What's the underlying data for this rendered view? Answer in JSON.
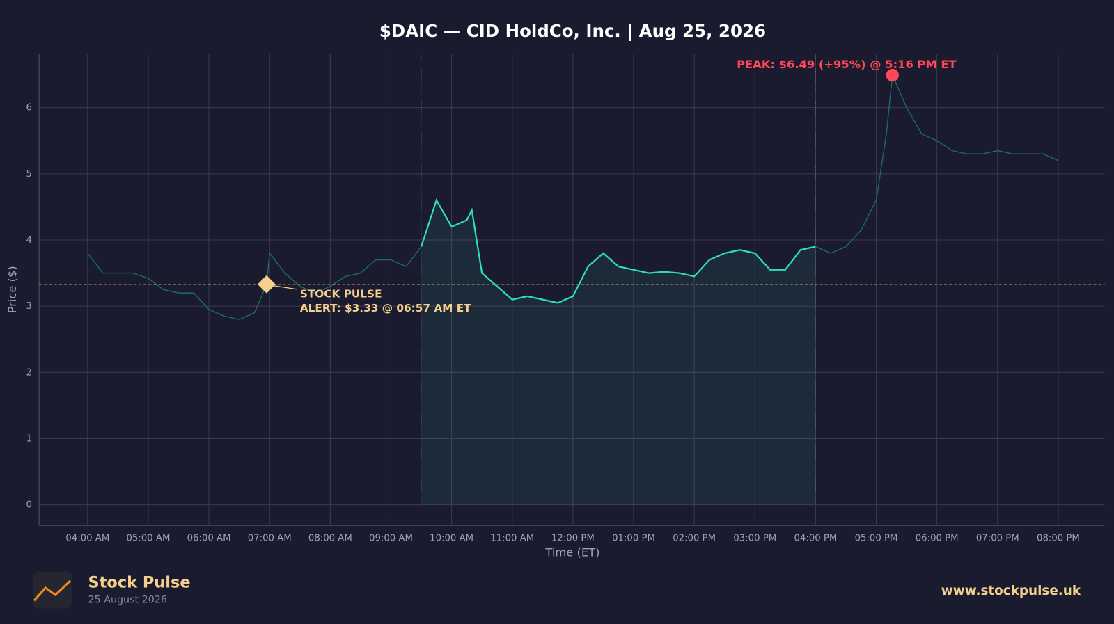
{
  "chart_data": {
    "type": "line",
    "title": "$DAIC — CID HoldCo, Inc.  |  Aug 25, 2026",
    "xlabel": "Time (ET)",
    "ylabel": "Price ($)",
    "x": [
      "04:00 AM",
      "04:15 AM",
      "04:30 AM",
      "04:45 AM",
      "05:00 AM",
      "05:15 AM",
      "05:30 AM",
      "05:45 AM",
      "06:00 AM",
      "06:15 AM",
      "06:30 AM",
      "06:45 AM",
      "06:57 AM",
      "07:00 AM",
      "07:15 AM",
      "07:30 AM",
      "07:45 AM",
      "08:00 AM",
      "08:15 AM",
      "08:30 AM",
      "08:45 AM",
      "09:00 AM",
      "09:15 AM",
      "09:30 AM",
      "09:45 AM",
      "10:00 AM",
      "10:15 AM",
      "10:20 AM",
      "10:30 AM",
      "10:45 AM",
      "11:00 AM",
      "11:15 AM",
      "11:30 AM",
      "11:45 AM",
      "12:00 PM",
      "12:15 PM",
      "12:30 PM",
      "12:45 PM",
      "01:00 PM",
      "01:15 PM",
      "01:30 PM",
      "01:45 PM",
      "02:00 PM",
      "02:15 PM",
      "02:30 PM",
      "02:45 PM",
      "03:00 PM",
      "03:15 PM",
      "03:30 PM",
      "03:45 PM",
      "04:00 PM",
      "04:15 PM",
      "04:30 PM",
      "04:45 PM",
      "05:00 PM",
      "05:10 PM",
      "05:16 PM",
      "05:30 PM",
      "05:45 PM",
      "06:00 PM",
      "06:15 PM",
      "06:30 PM",
      "06:45 PM",
      "07:00 PM",
      "07:15 PM",
      "07:30 PM",
      "07:45 PM",
      "08:00 PM"
    ],
    "values": [
      3.8,
      3.5,
      3.5,
      3.5,
      3.42,
      3.25,
      3.2,
      3.2,
      2.95,
      2.85,
      2.8,
      2.9,
      3.33,
      3.8,
      3.5,
      3.3,
      3.2,
      3.3,
      3.45,
      3.5,
      3.7,
      3.7,
      3.6,
      3.9,
      4.6,
      4.2,
      4.3,
      4.45,
      3.5,
      3.3,
      3.1,
      3.15,
      3.1,
      3.05,
      3.15,
      3.6,
      3.8,
      3.6,
      3.55,
      3.5,
      3.52,
      3.5,
      3.45,
      3.7,
      3.8,
      3.85,
      3.8,
      3.55,
      3.55,
      3.85,
      3.9,
      3.8,
      3.9,
      4.15,
      4.6,
      5.6,
      6.49,
      6.0,
      5.6,
      5.5,
      5.35,
      5.3,
      5.3,
      5.35,
      5.3,
      5.3,
      5.3,
      5.2
    ],
    "color": "#2de0b4",
    "dim_color": "#1c6d60",
    "highlight": [
      "09:30 AM",
      "04:00 PM"
    ],
    "xlim": [
      "03:12 AM",
      "08:46 PM"
    ],
    "xticks": [
      "04:00 AM",
      "05:00 AM",
      "06:00 AM",
      "07:00 AM",
      "08:00 AM",
      "09:00 AM",
      "10:00 AM",
      "11:00 AM",
      "12:00 PM",
      "01:00 PM",
      "02:00 PM",
      "03:00 PM",
      "04:00 PM",
      "05:00 PM",
      "06:00 PM",
      "07:00 PM",
      "08:00 PM"
    ],
    "ylim": [
      -0.31,
      6.81
    ],
    "yticks": [
      0,
      1,
      2,
      3,
      4,
      5,
      6
    ],
    "grid": true,
    "annotations": [
      {
        "lines": [
          "PEAK: $6.49 (+95%) @ 5:16 PM ET"
        ],
        "x": "05:16 PM",
        "y": 6.49,
        "color": "#ff4757"
      },
      {
        "lines": [
          "STOCK PULSE",
          "ALERT: $3.33 @ 06:57 AM ET"
        ],
        "x": "06:57 AM",
        "y": 3.33,
        "color": "#f5d08c"
      }
    ]
  },
  "footer": {
    "brand": "Stock Pulse",
    "date": "25 August 2026",
    "url": "www.stockpulse.uk"
  }
}
